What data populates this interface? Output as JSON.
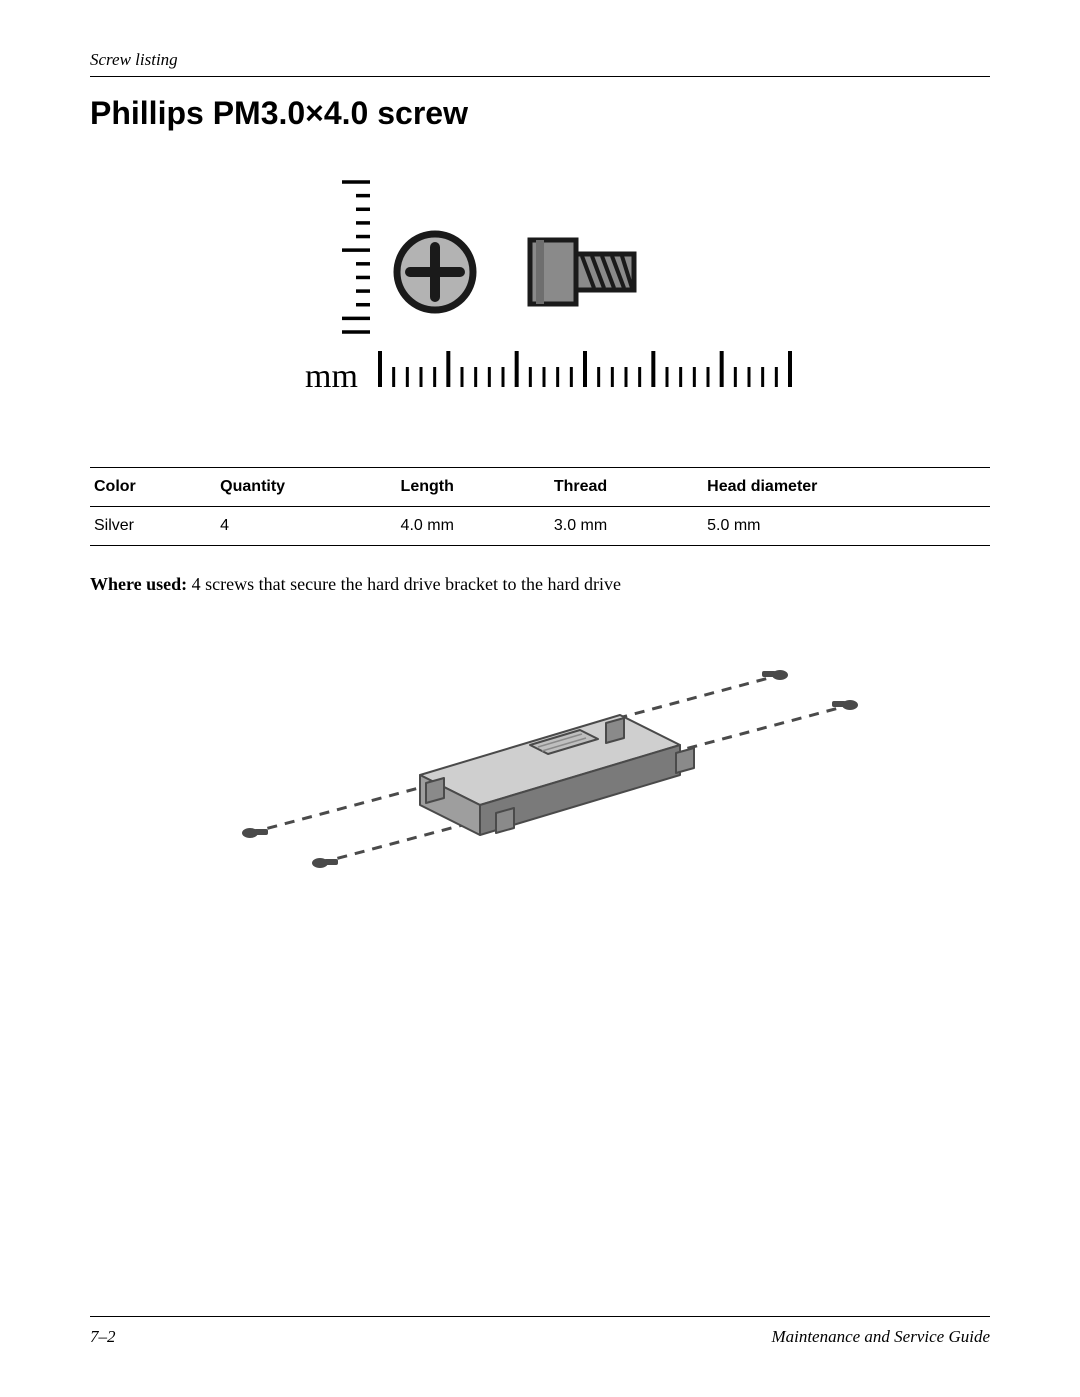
{
  "header": {
    "section_label": "Screw listing"
  },
  "title": "Phillips PM3.0×4.0 screw",
  "diagram": {
    "mm_label": "mm",
    "ruler_major_ticks": 7,
    "ruler_minor_per_major": 4,
    "vertical_ticks_count": 12,
    "screw_head_stroke": "#1a1a1a",
    "screw_head_fill": "#b3b3b3",
    "screw_thread_fill": "#808080",
    "plus_color": "#1a1a1a",
    "ruler_color": "#000000"
  },
  "table": {
    "columns": [
      "Color",
      "Quantity",
      "Length",
      "Thread",
      "Head diameter"
    ],
    "rows": [
      [
        "Silver",
        "4",
        "4.0 mm",
        "3.0 mm",
        "5.0 mm"
      ]
    ],
    "header_fontsize": 16,
    "cell_fontsize": 16,
    "border_color": "#000000"
  },
  "where_used": {
    "label": "Where used:",
    "text": " 4 screws that secure the hard drive bracket to the hard drive"
  },
  "assembly": {
    "bracket_fill_top": "#cfcfcf",
    "bracket_fill_side": "#9e9e9e",
    "bracket_fill_front": "#7a7a7a",
    "bracket_outline": "#4a4a4a",
    "screw_color": "#4a4a4a",
    "dash_color": "#4a4a4a",
    "label_fill": "#bfbfbf"
  },
  "footer": {
    "page_number": "7–2",
    "guide_title": "Maintenance and Service Guide"
  }
}
